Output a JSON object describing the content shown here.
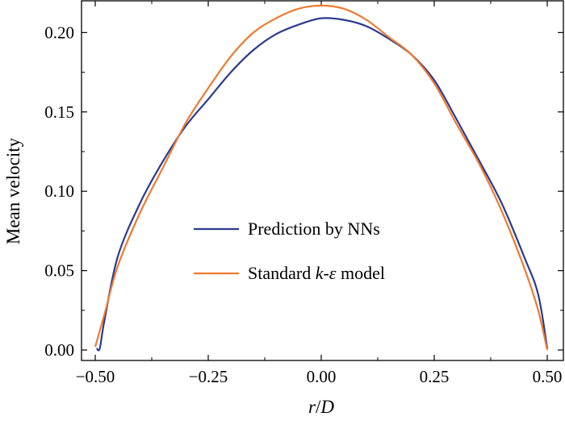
{
  "chart_data": {
    "type": "line",
    "xlabel": "r/D",
    "ylabel": "Mean velocity",
    "xlim": [
      -0.5,
      0.5
    ],
    "ylim": [
      0.0,
      0.22
    ],
    "xticks": [
      -0.5,
      -0.25,
      0.0,
      0.25,
      0.5
    ],
    "xtick_labels": [
      "−0.50",
      "−0.25",
      "0.00",
      "0.25",
      "0.50"
    ],
    "yticks": [
      0.0,
      0.05,
      0.1,
      0.15,
      0.2
    ],
    "ytick_labels": [
      "0.00",
      "0.05",
      "0.10",
      "0.15",
      "0.20"
    ],
    "grid": false,
    "legend_position": "center",
    "series": [
      {
        "name": "Prediction by NNs",
        "color": "#2b3a8f",
        "x": [
          -0.497,
          -0.49,
          -0.48,
          -0.45,
          -0.4,
          -0.35,
          -0.3,
          -0.25,
          -0.2,
          -0.15,
          -0.1,
          -0.05,
          0.0,
          0.05,
          0.1,
          0.15,
          0.2,
          0.25,
          0.3,
          0.35,
          0.4,
          0.45,
          0.48,
          0.5
        ],
        "y": [
          0.001,
          0.001,
          0.018,
          0.059,
          0.093,
          0.119,
          0.141,
          0.158,
          0.175,
          0.189,
          0.199,
          0.205,
          0.209,
          0.208,
          0.204,
          0.196,
          0.186,
          0.17,
          0.145,
          0.119,
          0.092,
          0.058,
          0.035,
          0.001
        ]
      },
      {
        "name": "Standard k-ε model",
        "color": "#ee7a30",
        "x": [
          -0.5,
          -0.48,
          -0.45,
          -0.4,
          -0.35,
          -0.3,
          -0.25,
          -0.2,
          -0.15,
          -0.1,
          -0.05,
          0.0,
          0.05,
          0.1,
          0.15,
          0.2,
          0.25,
          0.3,
          0.35,
          0.4,
          0.45,
          0.48,
          0.5
        ],
        "y": [
          0.002,
          0.022,
          0.053,
          0.087,
          0.115,
          0.143,
          0.165,
          0.185,
          0.2,
          0.209,
          0.215,
          0.217,
          0.215,
          0.208,
          0.197,
          0.186,
          0.168,
          0.142,
          0.117,
          0.087,
          0.051,
          0.025,
          0.0
        ]
      }
    ],
    "legend": [
      {
        "label": "Prediction by NNs",
        "color": "#2b3a8f"
      },
      {
        "label": "Standard k-ε model",
        "color": "#ee7a30"
      }
    ]
  }
}
